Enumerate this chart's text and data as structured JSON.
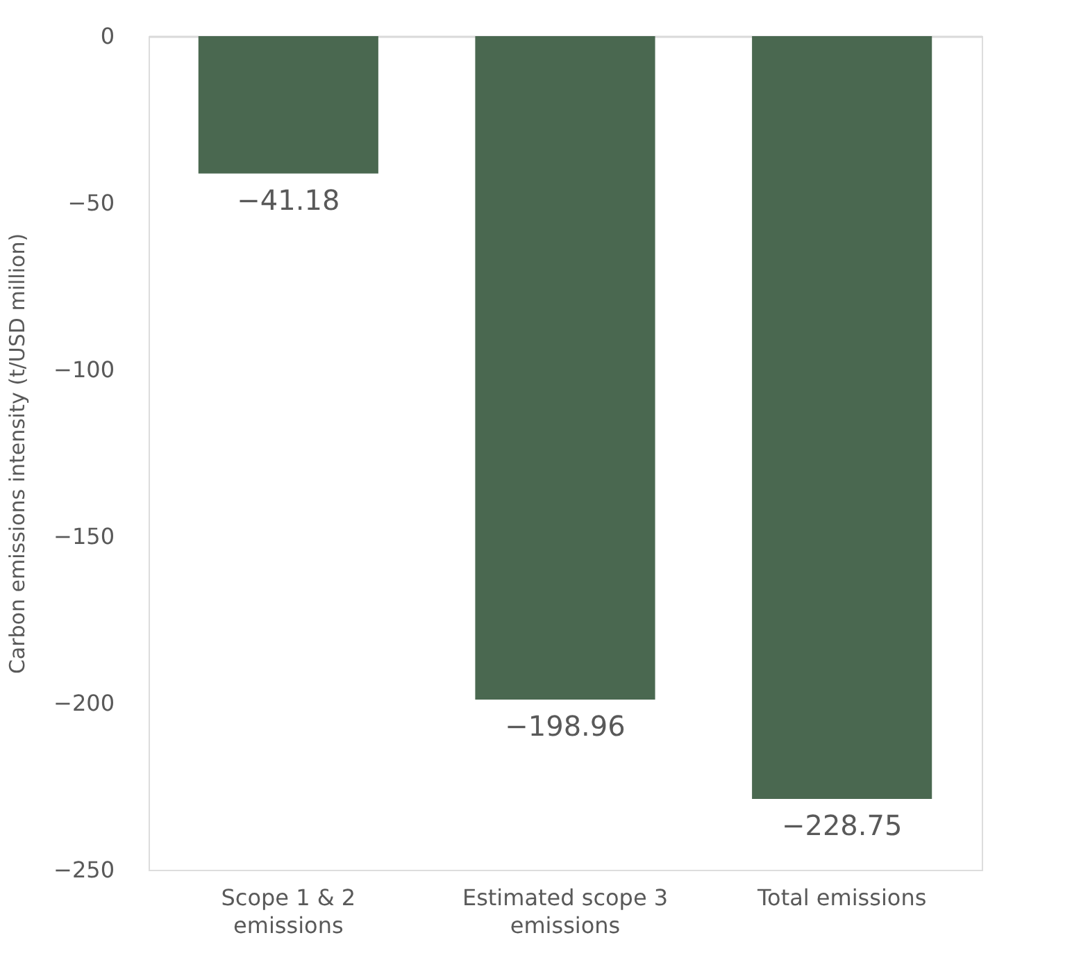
{
  "chart_data": {
    "type": "bar",
    "ylabel": "Carbon emissions intensity (t/USD million)",
    "categories": [
      "Scope 1 & 2 emissions",
      "Estimated scope 3 emissions",
      "Total emissions"
    ],
    "values": [
      -41.18,
      -198.96,
      -228.75
    ],
    "color": "#4a6850",
    "ylim": [
      -250,
      0
    ],
    "yticks": [
      0,
      -50,
      -100,
      -150,
      -200,
      -250
    ],
    "grid": false,
    "data_labels": true
  }
}
